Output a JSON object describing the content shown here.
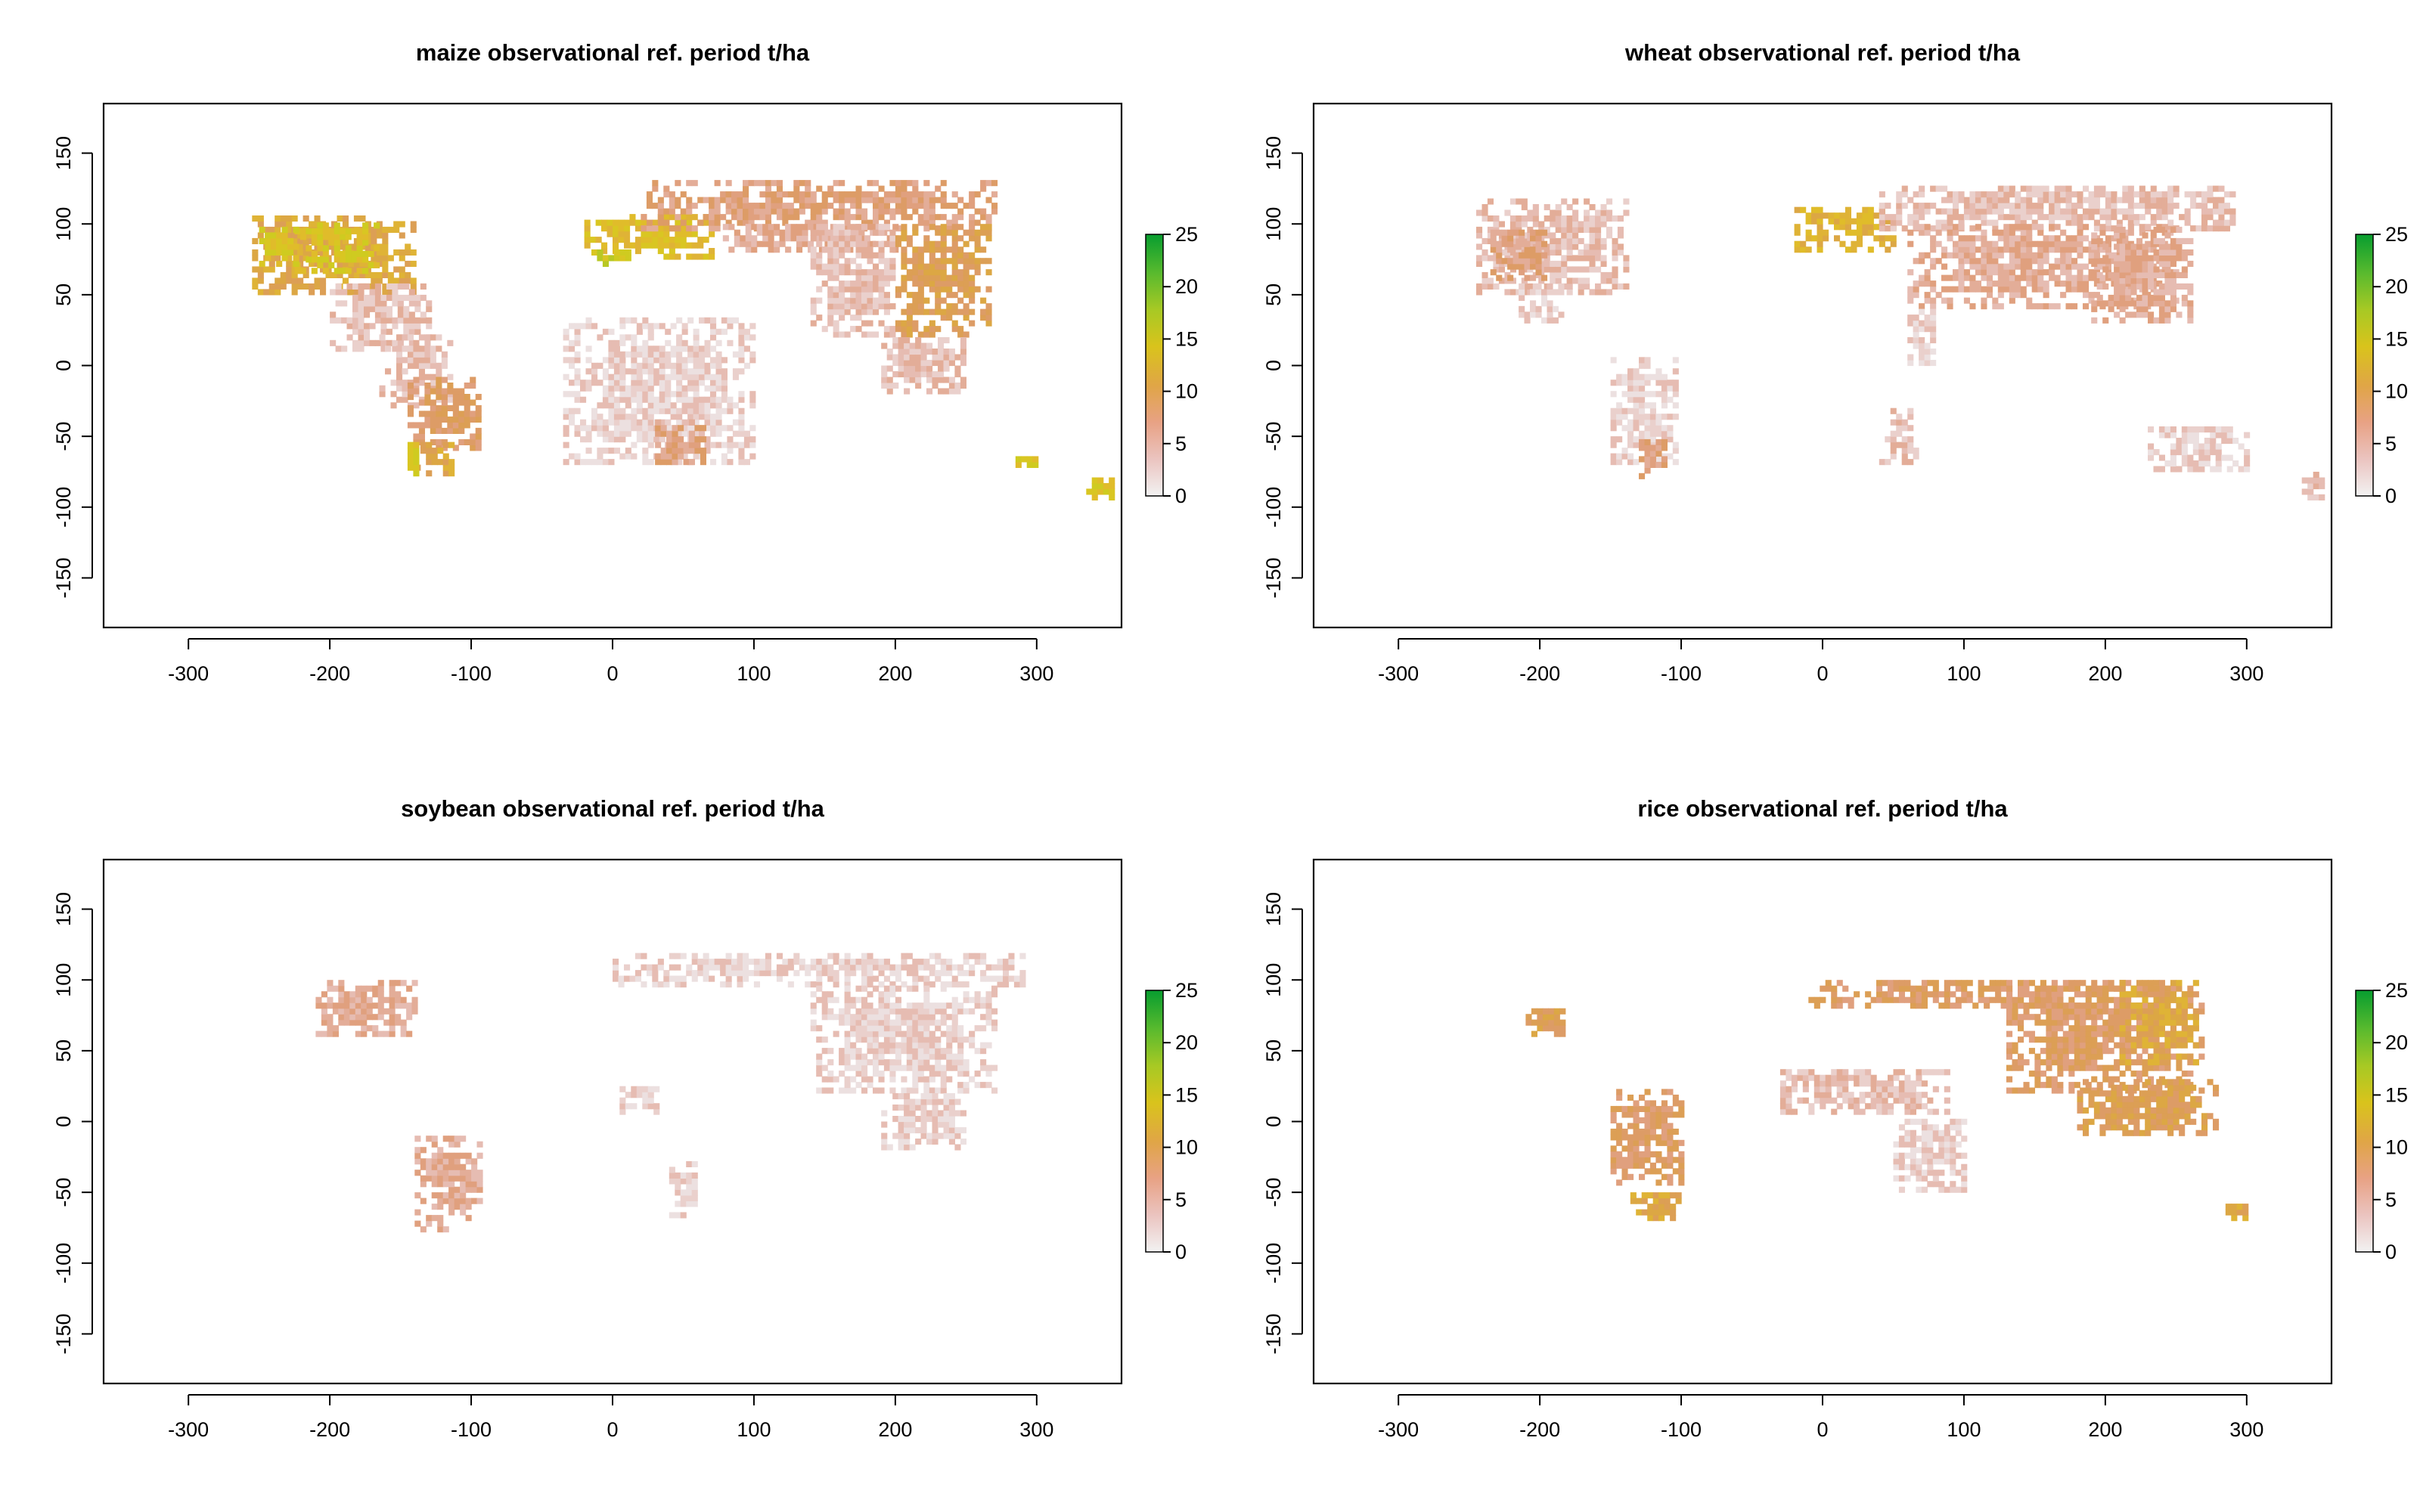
{
  "figure": {
    "layout": "2x2 grid of raster maps",
    "legend_placement": "right of each panel"
  },
  "palette": {
    "colorbar": [
      "#f2f2f2",
      "#ebc4c0",
      "#e8a285",
      "#e0a547",
      "#d9c31c",
      "#a8c924",
      "#5aba2e",
      "#079d2f"
    ],
    "land_low": "#ead8d8",
    "land_mid": "#e3b3a6",
    "land_high": "#dc9f6d",
    "land_peak": "#e3b52c",
    "land_top": "#d8c81e"
  },
  "chart_data": [
    {
      "type": "heatmap",
      "id": "maize",
      "title": "maize observational ref. period t/ha",
      "xlim": [
        -360,
        360
      ],
      "ylim": [
        -185,
        185
      ],
      "x_ticks": [
        -300,
        -200,
        -100,
        0,
        100,
        200,
        300
      ],
      "y_ticks": [
        -150,
        -100,
        -50,
        0,
        50,
        100,
        150
      ],
      "x_tick_labels": [
        "-300",
        "-200",
        "-100",
        "0",
        "100",
        "200",
        "300"
      ],
      "y_tick_labels": [
        "-150",
        "-100",
        "-50",
        "0",
        "50",
        "100",
        "150"
      ],
      "colorbar": {
        "range": [
          0,
          25
        ],
        "ticks": [
          0,
          5,
          10,
          15,
          20,
          25
        ],
        "tick_labels": [
          "0",
          "5",
          "10",
          "15",
          "20",
          "25"
        ]
      },
      "regions": [
        {
          "x": [
            -255,
            -140
          ],
          "y": [
            50,
            105
          ],
          "level": 8
        },
        {
          "x": [
            -225,
            -165
          ],
          "y": [
            65,
            100
          ],
          "level": 11
        },
        {
          "x": [
            -250,
            -225
          ],
          "y": [
            70,
            95
          ],
          "level": 11
        },
        {
          "x": [
            -200,
            -130
          ],
          "y": [
            10,
            55
          ],
          "level": 3
        },
        {
          "x": [
            -165,
            -115
          ],
          "y": [
            -30,
            20
          ],
          "level": 3
        },
        {
          "x": [
            -145,
            -95
          ],
          "y": [
            -60,
            -10
          ],
          "level": 6
        },
        {
          "x": [
            -140,
            -115
          ],
          "y": [
            -78,
            -55
          ],
          "level": 8
        },
        {
          "x": [
            -145,
            -140
          ],
          "y": [
            -78,
            -55
          ],
          "level": 11
        },
        {
          "x": [
            -20,
            70
          ],
          "y": [
            75,
            105
          ],
          "level": 10
        },
        {
          "x": [
            -15,
            10
          ],
          "y": [
            70,
            80
          ],
          "level": 12
        },
        {
          "x": [
            20,
            270
          ],
          "y": [
            95,
            128
          ],
          "level": 5
        },
        {
          "x": [
            70,
            200
          ],
          "y": [
            80,
            100
          ],
          "level": 4
        },
        {
          "x": [
            -35,
            100
          ],
          "y": [
            -70,
            32
          ],
          "level": 2
        },
        {
          "x": [
            30,
            65
          ],
          "y": [
            -70,
            -40
          ],
          "level": 5
        },
        {
          "x": [
            140,
            200
          ],
          "y": [
            20,
            100
          ],
          "level": 3
        },
        {
          "x": [
            200,
            265
          ],
          "y": [
            20,
            98
          ],
          "level": 7
        },
        {
          "x": [
            190,
            250
          ],
          "y": [
            -20,
            20
          ],
          "level": 3
        },
        {
          "x": [
            285,
            300
          ],
          "y": [
            -72,
            -65
          ],
          "level": 11
        },
        {
          "x": [
            335,
            355
          ],
          "y": [
            -95,
            -80
          ],
          "level": 11
        }
      ]
    },
    {
      "type": "heatmap",
      "id": "wheat",
      "title": "wheat observational ref. period t/ha",
      "xlim": [
        -360,
        360
      ],
      "ylim": [
        -185,
        185
      ],
      "x_ticks": [
        -300,
        -200,
        -100,
        0,
        100,
        200,
        300
      ],
      "y_ticks": [
        -150,
        -100,
        -50,
        0,
        50,
        100,
        150
      ],
      "x_tick_labels": [
        "-300",
        "-200",
        "-100",
        "0",
        "100",
        "200",
        "300"
      ],
      "y_tick_labels": [
        "-150",
        "-100",
        "-50",
        "0",
        "50",
        "100",
        "150"
      ],
      "colorbar": {
        "range": [
          0,
          25
        ],
        "ticks": [
          0,
          5,
          10,
          15,
          20,
          25
        ],
        "tick_labels": [
          "0",
          "5",
          "10",
          "15",
          "20",
          "25"
        ]
      },
      "regions": [
        {
          "x": [
            -245,
            -140
          ],
          "y": [
            50,
            118
          ],
          "level": 3
        },
        {
          "x": [
            -235,
            -195
          ],
          "y": [
            60,
            95
          ],
          "level": 5
        },
        {
          "x": [
            -215,
            -185
          ],
          "y": [
            30,
            55
          ],
          "level": 2
        },
        {
          "x": [
            -150,
            -105
          ],
          "y": [
            -70,
            5
          ],
          "level": 2
        },
        {
          "x": [
            -130,
            -110
          ],
          "y": [
            -80,
            -55
          ],
          "level": 5
        },
        {
          "x": [
            -20,
            50
          ],
          "y": [
            80,
            112
          ],
          "level": 9
        },
        {
          "x": [
            40,
            290
          ],
          "y": [
            95,
            125
          ],
          "level": 3
        },
        {
          "x": [
            60,
            250
          ],
          "y": [
            40,
            100
          ],
          "level": 4
        },
        {
          "x": [
            190,
            260
          ],
          "y": [
            30,
            95
          ],
          "level": 4
        },
        {
          "x": [
            60,
            80
          ],
          "y": [
            0,
            40
          ],
          "level": 2
        },
        {
          "x": [
            40,
            65
          ],
          "y": [
            -70,
            -30
          ],
          "level": 3
        },
        {
          "x": [
            230,
            300
          ],
          "y": [
            -75,
            -45
          ],
          "level": 2
        },
        {
          "x": [
            335,
            355
          ],
          "y": [
            -95,
            -78
          ],
          "level": 3
        }
      ]
    },
    {
      "type": "heatmap",
      "id": "soybean",
      "title": "soybean observational ref. period t/ha",
      "xlim": [
        -360,
        360
      ],
      "ylim": [
        -185,
        185
      ],
      "x_ticks": [
        -300,
        -200,
        -100,
        0,
        100,
        200,
        300
      ],
      "y_ticks": [
        -150,
        -100,
        -50,
        0,
        50,
        100,
        150
      ],
      "x_tick_labels": [
        "-300",
        "-200",
        "-100",
        "0",
        "100",
        "200",
        "300"
      ],
      "y_tick_labels": [
        "-150",
        "-100",
        "-50",
        "0",
        "50",
        "100",
        "150"
      ],
      "colorbar": {
        "range": [
          0,
          25
        ],
        "ticks": [
          0,
          5,
          10,
          15,
          20,
          25
        ],
        "tick_labels": [
          "0",
          "5",
          "10",
          "15",
          "20",
          "25"
        ]
      },
      "regions": [
        {
          "x": [
            -210,
            -140
          ],
          "y": [
            60,
            100
          ],
          "level": 4
        },
        {
          "x": [
            -140,
            -95
          ],
          "y": [
            -78,
            -10
          ],
          "level": 4
        },
        {
          "x": [
            0,
            290
          ],
          "y": [
            95,
            118
          ],
          "level": 2
        },
        {
          "x": [
            140,
            270
          ],
          "y": [
            20,
            95
          ],
          "level": 2
        },
        {
          "x": [
            190,
            250
          ],
          "y": [
            -20,
            20
          ],
          "level": 2
        },
        {
          "x": [
            40,
            60
          ],
          "y": [
            -68,
            -30
          ],
          "level": 2
        },
        {
          "x": [
            5,
            30
          ],
          "y": [
            5,
            25
          ],
          "level": 2
        }
      ]
    },
    {
      "type": "heatmap",
      "id": "rice",
      "title": "rice observational ref. period t/ha",
      "xlim": [
        -360,
        360
      ],
      "ylim": [
        -185,
        185
      ],
      "x_ticks": [
        -300,
        -200,
        -100,
        0,
        100,
        200,
        300
      ],
      "y_ticks": [
        -150,
        -100,
        -50,
        0,
        50,
        100,
        150
      ],
      "x_tick_labels": [
        "-300",
        "-200",
        "-100",
        "0",
        "100",
        "200",
        "300"
      ],
      "y_tick_labels": [
        "-150",
        "-100",
        "-50",
        "0",
        "50",
        "100",
        "150"
      ],
      "colorbar": {
        "range": [
          0,
          25
        ],
        "ticks": [
          0,
          5,
          10,
          15,
          20,
          25
        ],
        "tick_labels": [
          "0",
          "5",
          "10",
          "15",
          "20",
          "25"
        ]
      },
      "regions": [
        {
          "x": [
            -210,
            -180
          ],
          "y": [
            60,
            80
          ],
          "level": 7
        },
        {
          "x": [
            -150,
            -100
          ],
          "y": [
            -45,
            20
          ],
          "level": 6
        },
        {
          "x": [
            -140,
            -100
          ],
          "y": [
            -70,
            -50
          ],
          "level": 8
        },
        {
          "x": [
            -30,
            90
          ],
          "y": [
            5,
            35
          ],
          "level": 3
        },
        {
          "x": [
            -10,
            250
          ],
          "y": [
            80,
            100
          ],
          "level": 6
        },
        {
          "x": [
            130,
            270
          ],
          "y": [
            20,
            95
          ],
          "level": 6
        },
        {
          "x": [
            210,
            265
          ],
          "y": [
            40,
            98
          ],
          "level": 8
        },
        {
          "x": [
            180,
            280
          ],
          "y": [
            -10,
            30
          ],
          "level": 7
        },
        {
          "x": [
            285,
            300
          ],
          "y": [
            -70,
            -60
          ],
          "level": 8
        },
        {
          "x": [
            50,
            100
          ],
          "y": [
            -50,
            0
          ],
          "level": 2
        }
      ]
    }
  ]
}
